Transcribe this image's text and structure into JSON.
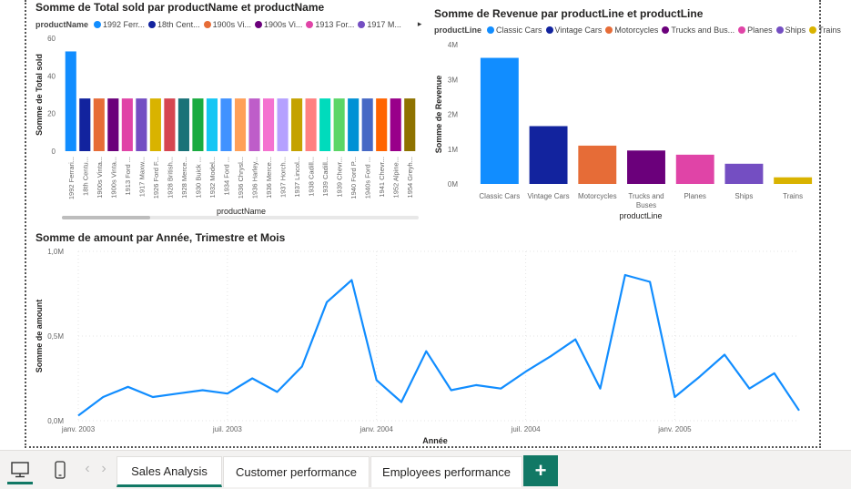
{
  "chart_data": [
    {
      "type": "bar",
      "title": "Somme de Total sold par productName et productName",
      "legend_title": "productName",
      "legend_items": [
        "1992 Ferr...",
        "18th Cent...",
        "1900s Vi...",
        "1900s Vi...",
        "1913 For...",
        "1917 M..."
      ],
      "legend_more": "▸",
      "xlabel": "productName",
      "ylabel": "Somme de Total sold",
      "ylim": [
        0,
        60
      ],
      "yticks": [
        "0",
        "20",
        "40",
        "60"
      ],
      "categories": [
        "1992 Ferrari...",
        "18th Centu...",
        "1900s Vinta...",
        "1900s Vinta...",
        "1913 Ford ...",
        "1917 Maxw...",
        "1926 Ford F...",
        "1928 British...",
        "1928 Merce...",
        "1930 Buick ...",
        "1932 Model...",
        "1934 Ford ...",
        "1936 Chrysl...",
        "1936 Harley...",
        "1936 Merce...",
        "1937 Horch...",
        "1937 Lincol...",
        "1938 Cadill...",
        "1939 Cadill...",
        "1939 Chevr...",
        "1940 Ford P...",
        "1940s Ford ...",
        "1941 Chevr...",
        "1952 Alpine...",
        "1954 Greyh..."
      ],
      "values": [
        53,
        28,
        28,
        28,
        28,
        28,
        28,
        28,
        28,
        28,
        28,
        28,
        28,
        28,
        28,
        28,
        28,
        28,
        28,
        28,
        28,
        28,
        28,
        28,
        28
      ],
      "colors": [
        "#118DFF",
        "#12239E",
        "#E66C37",
        "#6B007B",
        "#E044A7",
        "#744EC2",
        "#D9B300",
        "#D64550",
        "#197278",
        "#1AAB40",
        "#15C6F4",
        "#4092FF",
        "#FFA058",
        "#BE5DC9",
        "#F472D0",
        "#B5A1FF",
        "#C4A200",
        "#FF8080",
        "#00DBBC",
        "#5BD667",
        "#0091D5",
        "#4668C5",
        "#FF6300",
        "#99008A",
        "#8E7200"
      ]
    },
    {
      "type": "bar",
      "title": "Somme de Revenue par productLine et productLine",
      "legend_title": "productLine",
      "legend_items": [
        "Classic Cars",
        "Vintage Cars",
        "Motorcycles",
        "Trucks and Bus...",
        "Planes",
        "Ships",
        "Trains"
      ],
      "xlabel": "productLine",
      "ylabel": "Somme de Revenue",
      "ylim": [
        0,
        4000000
      ],
      "yticks": [
        "0M",
        "1M",
        "2M",
        "3M",
        "4M"
      ],
      "categories": [
        "Classic Cars",
        "Vintage Cars",
        "Motorcycles",
        "Trucks and Buses",
        "Planes",
        "Ships",
        "Trains"
      ],
      "values": [
        3620000,
        1660000,
        1100000,
        960000,
        840000,
        580000,
        190000
      ],
      "colors": [
        "#118DFF",
        "#12239E",
        "#E66C37",
        "#6B007B",
        "#E044A7",
        "#744EC2",
        "#D9B300"
      ]
    },
    {
      "type": "line",
      "title": "Somme de amount par Année, Trimestre et Mois",
      "xlabel": "Année",
      "ylabel": "Somme de amount",
      "ylim": [
        0,
        1000000
      ],
      "yticks": [
        "0,0M",
        "0,5M",
        "1,0M"
      ],
      "xticks": [
        "janv. 2003",
        "juil. 2003",
        "janv. 2004",
        "juil. 2004",
        "janv. 2005"
      ],
      "x": [
        "2003-01",
        "2003-02",
        "2003-03",
        "2003-04",
        "2003-05",
        "2003-06",
        "2003-07",
        "2003-08",
        "2003-09",
        "2003-10",
        "2003-11",
        "2003-12",
        "2004-01",
        "2004-02",
        "2004-03",
        "2004-04",
        "2004-05",
        "2004-06",
        "2004-07",
        "2004-08",
        "2004-09",
        "2004-10",
        "2004-11",
        "2004-12",
        "2005-01",
        "2005-02",
        "2005-03",
        "2005-04",
        "2005-05",
        "2005-06"
      ],
      "values": [
        30000,
        140000,
        200000,
        140000,
        160000,
        180000,
        160000,
        250000,
        170000,
        320000,
        700000,
        830000,
        240000,
        110000,
        410000,
        180000,
        210000,
        190000,
        290000,
        380000,
        480000,
        190000,
        860000,
        820000,
        140000,
        260000,
        390000,
        190000,
        280000,
        60000
      ],
      "color": "#118DFF"
    }
  ],
  "tabs": {
    "desktop_icon": "desktop-icon",
    "mobile_icon": "mobile-icon",
    "prev": "‹",
    "next": "›",
    "items": [
      "Sales Analysis",
      "Customer performance",
      "Employees performance"
    ],
    "add_label": "+"
  }
}
